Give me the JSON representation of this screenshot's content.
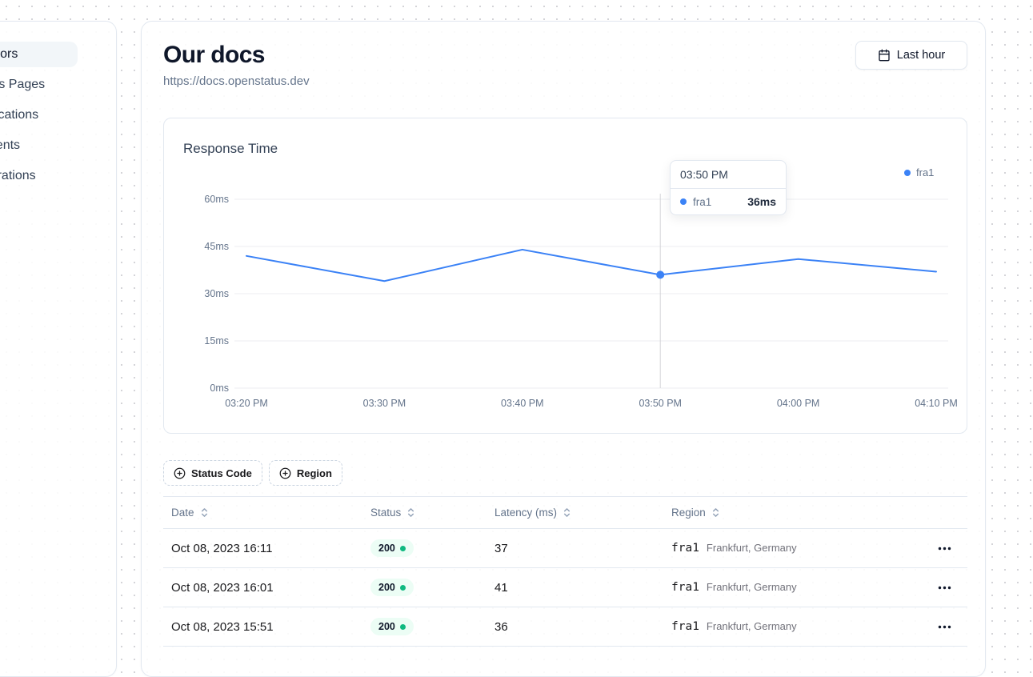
{
  "sidebar": {
    "items": [
      {
        "label": "Monitors",
        "active": true
      },
      {
        "label": "Status Pages",
        "active": false
      },
      {
        "label": "Notifications",
        "active": false
      },
      {
        "label": "Incidents",
        "active": false
      },
      {
        "label": "Integrations",
        "active": false
      }
    ]
  },
  "header": {
    "title": "Our docs",
    "url": "https://docs.openstatus.dev",
    "range_button": "Last hour"
  },
  "chart_card": {
    "title": "Response Time",
    "legend": {
      "name": "fra1",
      "color": "#3b82f6"
    }
  },
  "chart_data": {
    "type": "line",
    "title": "Response Time",
    "x": [
      "03:20 PM",
      "03:30 PM",
      "03:40 PM",
      "03:50 PM",
      "04:00 PM",
      "04:10 PM"
    ],
    "series": [
      {
        "name": "fra1",
        "color": "#3b82f6",
        "values": [
          42,
          34,
          44,
          36,
          41,
          37
        ]
      }
    ],
    "ylabel": "ms",
    "ylim": [
      0,
      60
    ],
    "yticks": [
      0,
      15,
      30,
      45,
      60
    ],
    "ytick_suffix": "ms",
    "grid": "horizontal",
    "legend_position": "top-right",
    "highlight_index": 3
  },
  "tooltip": {
    "time": "03:50 PM",
    "rows": [
      {
        "name": "fra1",
        "value": "36ms"
      }
    ]
  },
  "filters": [
    {
      "label": "Status Code"
    },
    {
      "label": "Region"
    }
  ],
  "table": {
    "columns": [
      {
        "label": "Date"
      },
      {
        "label": "Status"
      },
      {
        "label": "Latency (ms)"
      },
      {
        "label": "Region"
      }
    ],
    "rows": [
      {
        "date": "Oct 08, 2023 16:11",
        "status": "200",
        "latency": "37",
        "region_code": "fra1",
        "region_name": "Frankfurt, Germany"
      },
      {
        "date": "Oct 08, 2023 16:01",
        "status": "200",
        "latency": "41",
        "region_code": "fra1",
        "region_name": "Frankfurt, Germany"
      },
      {
        "date": "Oct 08, 2023 15:51",
        "status": "200",
        "latency": "36",
        "region_code": "fra1",
        "region_name": "Frankfurt, Germany"
      }
    ],
    "status_colors": {
      "badge_bg": "#ecfdf5",
      "dot": "#10b981"
    }
  }
}
